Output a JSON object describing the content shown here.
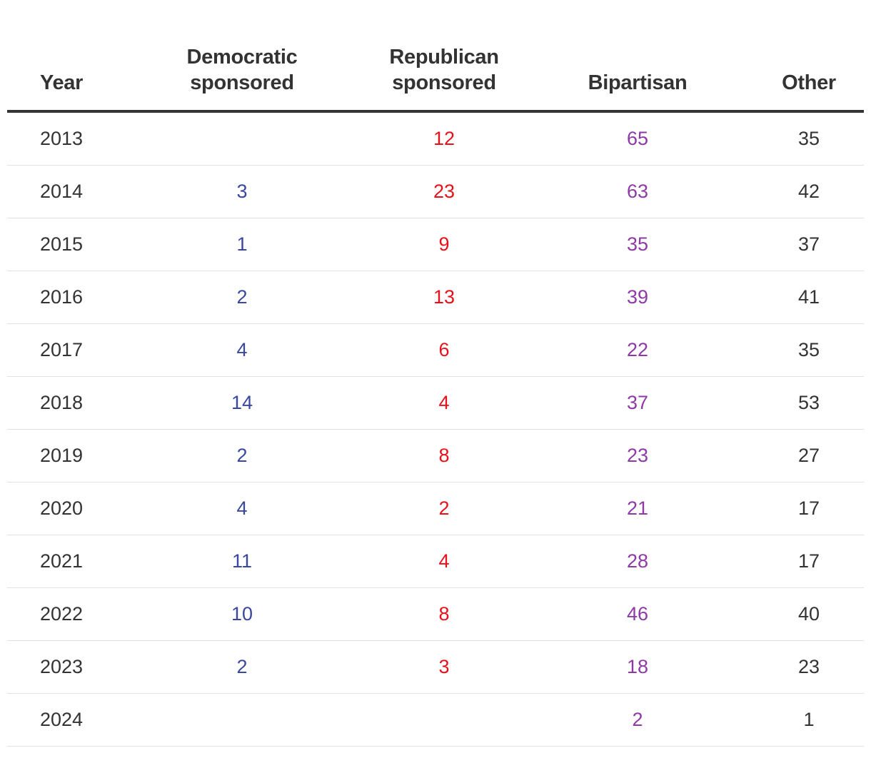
{
  "chart_data": {
    "type": "table",
    "columns": [
      {
        "key": "year",
        "lines": [
          "Year"
        ]
      },
      {
        "key": "democratic",
        "lines": [
          "Democratic",
          "sponsored"
        ]
      },
      {
        "key": "republican",
        "lines": [
          "Republican",
          "sponsored"
        ]
      },
      {
        "key": "bipartisan",
        "lines": [
          "Bipartisan"
        ]
      },
      {
        "key": "other",
        "lines": [
          "Other"
        ]
      }
    ],
    "rows": [
      {
        "year": "2013",
        "democratic": "",
        "republican": "12",
        "bipartisan": "65",
        "other": "35"
      },
      {
        "year": "2014",
        "democratic": "3",
        "republican": "23",
        "bipartisan": "63",
        "other": "42"
      },
      {
        "year": "2015",
        "democratic": "1",
        "republican": "9",
        "bipartisan": "35",
        "other": "37"
      },
      {
        "year": "2016",
        "democratic": "2",
        "republican": "13",
        "bipartisan": "39",
        "other": "41"
      },
      {
        "year": "2017",
        "democratic": "4",
        "republican": "6",
        "bipartisan": "22",
        "other": "35"
      },
      {
        "year": "2018",
        "democratic": "14",
        "republican": "4",
        "bipartisan": "37",
        "other": "53"
      },
      {
        "year": "2019",
        "democratic": "2",
        "republican": "8",
        "bipartisan": "23",
        "other": "27"
      },
      {
        "year": "2020",
        "democratic": "4",
        "republican": "2",
        "bipartisan": "21",
        "other": "17"
      },
      {
        "year": "2021",
        "democratic": "11",
        "republican": "4",
        "bipartisan": "28",
        "other": "17"
      },
      {
        "year": "2022",
        "democratic": "10",
        "republican": "8",
        "bipartisan": "46",
        "other": "40"
      },
      {
        "year": "2023",
        "democratic": "2",
        "republican": "3",
        "bipartisan": "18",
        "other": "23"
      },
      {
        "year": "2024",
        "democratic": "",
        "republican": "",
        "bipartisan": "2",
        "other": "1"
      }
    ],
    "colors": {
      "democratic": "#3a47a0",
      "republican": "#e8101a",
      "bipartisan": "#8e3aa6",
      "other": "#333333",
      "header_rule": "#333333",
      "row_rule": "#e2e2e2"
    }
  }
}
